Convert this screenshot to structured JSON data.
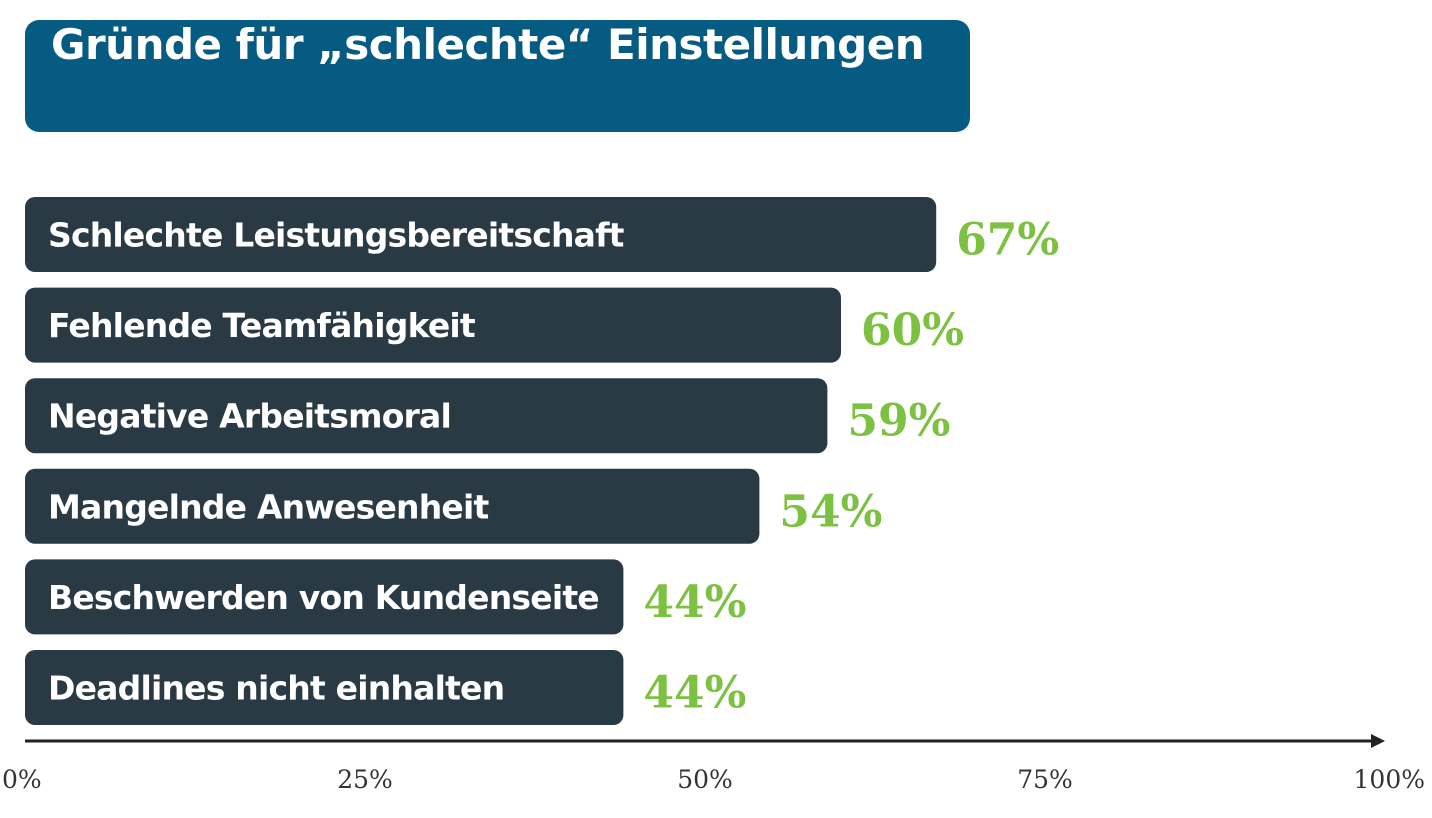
{
  "chart_data": {
    "type": "bar",
    "orientation": "horizontal",
    "title": "Gründe für „schlechte“ Einstellungen",
    "categories": [
      "Schlechte Leistungsbereitschaft",
      "Fehlende Teamfähigkeit",
      "Negative Arbeitsmoral",
      "Mangelnde Anwesenheit",
      "Beschwerden von Kundenseite",
      "Deadlines nicht einhalten"
    ],
    "values": [
      67,
      60,
      59,
      54,
      44,
      44
    ],
    "value_labels": [
      "67%",
      "60%",
      "59%",
      "54%",
      "44%",
      "44%"
    ],
    "xlim": [
      0,
      100
    ],
    "xticks": [
      0,
      25,
      50,
      75,
      100
    ],
    "xtick_labels": [
      "0%",
      "25%",
      "50%",
      "75%",
      "100%"
    ],
    "grid": false,
    "legend": "none",
    "colors": {
      "title_bg": "#065b83",
      "bar": "#2a3a44",
      "value": "#7dc142",
      "axis": "#222222"
    }
  }
}
